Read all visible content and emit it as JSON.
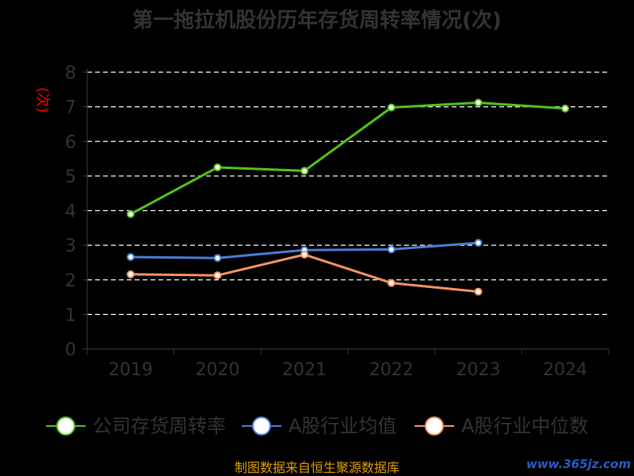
{
  "chart_data": {
    "type": "line",
    "title": "第一拖拉机股份历年存货周转率情况(次)",
    "ylabel": "(次)",
    "categories": [
      "2019",
      "2020",
      "2021",
      "2022",
      "2023",
      "2024"
    ],
    "ylim": [
      0,
      8
    ],
    "yticks": [
      0,
      1,
      2,
      3,
      4,
      5,
      6,
      7,
      8
    ],
    "grid": true,
    "legend_position": "bottom",
    "series": [
      {
        "name": "公司存货周转率",
        "color": "#52c41a",
        "values": [
          3.9,
          5.25,
          5.15,
          6.98,
          7.12,
          6.95
        ]
      },
      {
        "name": "A股行业均值",
        "color": "#4a7fd4",
        "values": [
          2.66,
          2.63,
          2.86,
          2.88,
          3.07,
          null
        ]
      },
      {
        "name": "A股行业中位数",
        "color": "#f79464",
        "values": [
          2.16,
          2.13,
          2.73,
          1.91,
          1.66,
          null
        ]
      }
    ]
  },
  "footer": {
    "source": "制图数据来自恒生聚源数据库",
    "watermark": "www.365jz.com"
  }
}
